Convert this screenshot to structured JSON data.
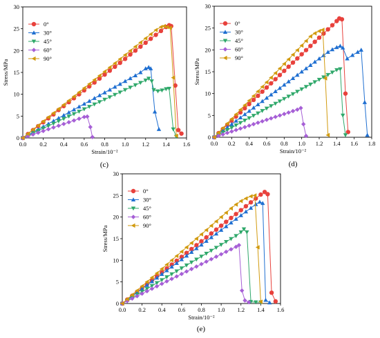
{
  "colors": {
    "0°": "#e8413c",
    "30°": "#1f6fd1",
    "45°": "#2fa86a",
    "60°": "#a65fd6",
    "90°": "#d19a0e"
  },
  "chart_data": [
    {
      "panel": "(c)",
      "type": "line",
      "xlabel": "Strain/10⁻²",
      "ylabel": "Stress/MPa",
      "xlim": [
        0,
        1.6
      ],
      "ylim": [
        0,
        30
      ],
      "xticks": [
        0.0,
        0.2,
        0.4,
        0.6,
        0.8,
        1.0,
        1.2,
        1.4,
        1.6
      ],
      "yticks": [
        0,
        5,
        10,
        15,
        20,
        25,
        30
      ],
      "legend_position": "top-left",
      "series": [
        {
          "name": "0°",
          "marker": "circle",
          "x": [
            0,
            0.05,
            0.1,
            0.15,
            0.2,
            0.25,
            0.3,
            0.35,
            0.4,
            0.45,
            0.5,
            0.55,
            0.6,
            0.65,
            0.7,
            0.75,
            0.8,
            0.85,
            0.9,
            0.95,
            1.0,
            1.05,
            1.1,
            1.15,
            1.2,
            1.25,
            1.3,
            1.35,
            1.4,
            1.43,
            1.45,
            1.49,
            1.52,
            1.55
          ],
          "y": [
            0,
            0.9,
            1.8,
            2.7,
            3.6,
            4.5,
            5.4,
            6.4,
            7.3,
            8.2,
            9.1,
            10.0,
            10.9,
            11.8,
            12.7,
            13.6,
            14.5,
            15.4,
            16.3,
            17.2,
            18.1,
            19.1,
            20.0,
            20.9,
            21.8,
            22.7,
            23.6,
            24.5,
            25.4,
            25.8,
            25.6,
            12.0,
            1.8,
            1.0
          ]
        },
        {
          "name": "30°",
          "marker": "triangle-up",
          "x": [
            0,
            0.05,
            0.1,
            0.15,
            0.2,
            0.25,
            0.3,
            0.35,
            0.4,
            0.45,
            0.5,
            0.55,
            0.6,
            0.65,
            0.7,
            0.75,
            0.8,
            0.85,
            0.9,
            0.95,
            1.0,
            1.05,
            1.1,
            1.15,
            1.2,
            1.23,
            1.25,
            1.29,
            1.33
          ],
          "y": [
            0,
            0.65,
            1.3,
            1.95,
            2.6,
            3.25,
            3.9,
            4.55,
            5.2,
            5.85,
            6.5,
            7.15,
            7.8,
            8.45,
            9.1,
            9.75,
            10.4,
            11.05,
            11.7,
            12.35,
            13.0,
            13.65,
            14.3,
            15.0,
            15.9,
            16.2,
            15.9,
            6.0,
            2.0
          ]
        },
        {
          "name": "45°",
          "marker": "triangle-down",
          "x": [
            0,
            0.05,
            0.1,
            0.15,
            0.2,
            0.25,
            0.3,
            0.35,
            0.4,
            0.45,
            0.5,
            0.55,
            0.6,
            0.65,
            0.7,
            0.75,
            0.8,
            0.85,
            0.9,
            0.95,
            1.0,
            1.05,
            1.1,
            1.15,
            1.2,
            1.23,
            1.26,
            1.28,
            1.32,
            1.36,
            1.4,
            1.43,
            1.47,
            1.5
          ],
          "y": [
            0,
            0.55,
            1.1,
            1.65,
            2.2,
            2.75,
            3.3,
            3.85,
            4.4,
            4.95,
            5.5,
            6.05,
            6.6,
            7.15,
            7.7,
            8.25,
            8.8,
            9.35,
            9.9,
            10.45,
            11.0,
            11.55,
            12.1,
            12.65,
            13.2,
            13.6,
            13.0,
            11.0,
            10.7,
            10.9,
            11.2,
            11.3,
            2.0,
            0.3
          ]
        },
        {
          "name": "60°",
          "marker": "diamond",
          "x": [
            0,
            0.05,
            0.1,
            0.15,
            0.2,
            0.25,
            0.3,
            0.35,
            0.4,
            0.45,
            0.5,
            0.55,
            0.6,
            0.63,
            0.66,
            0.68
          ],
          "y": [
            0,
            0.4,
            0.8,
            1.2,
            1.6,
            2.0,
            2.4,
            2.8,
            3.2,
            3.6,
            4.0,
            4.4,
            4.8,
            4.9,
            2.5,
            0.2
          ]
        },
        {
          "name": "90°",
          "marker": "triangle-left",
          "x": [
            0,
            0.05,
            0.1,
            0.15,
            0.2,
            0.25,
            0.3,
            0.35,
            0.4,
            0.45,
            0.5,
            0.55,
            0.6,
            0.65,
            0.7,
            0.75,
            0.8,
            0.85,
            0.9,
            0.95,
            1.0,
            1.05,
            1.1,
            1.15,
            1.2,
            1.25,
            1.3,
            1.35,
            1.38,
            1.41,
            1.44,
            1.47,
            1.5
          ],
          "y": [
            0,
            0.95,
            1.9,
            2.85,
            3.8,
            4.75,
            5.7,
            6.65,
            7.6,
            8.55,
            9.5,
            10.45,
            11.4,
            12.35,
            13.3,
            14.25,
            15.2,
            16.15,
            17.1,
            18.05,
            19.0,
            19.95,
            20.9,
            21.85,
            22.8,
            23.75,
            24.7,
            25.4,
            25.6,
            25.4,
            25.2,
            13.8,
            0.5
          ]
        }
      ]
    },
    {
      "panel": "(d)",
      "type": "line",
      "xlabel": "Strain/10⁻²",
      "ylabel": "Stress/MPa",
      "xlim": [
        0,
        1.8
      ],
      "ylim": [
        0,
        30
      ],
      "xticks": [
        0.0,
        0.2,
        0.4,
        0.6,
        0.8,
        1.0,
        1.2,
        1.4,
        1.6,
        1.8
      ],
      "yticks": [
        0,
        5,
        10,
        15,
        20,
        25,
        30
      ],
      "legend_position": "top-left",
      "series": [
        {
          "name": "0°",
          "marker": "circle",
          "x": [
            0,
            0.05,
            0.1,
            0.15,
            0.2,
            0.25,
            0.3,
            0.35,
            0.4,
            0.45,
            0.5,
            0.55,
            0.6,
            0.65,
            0.7,
            0.75,
            0.8,
            0.85,
            0.9,
            0.95,
            1.0,
            1.05,
            1.1,
            1.15,
            1.2,
            1.25,
            1.3,
            1.35,
            1.4,
            1.43,
            1.46,
            1.5,
            1.53
          ],
          "y": [
            0,
            0.95,
            1.9,
            2.85,
            3.8,
            4.75,
            5.7,
            6.65,
            7.6,
            8.55,
            9.5,
            10.45,
            11.4,
            12.35,
            13.3,
            14.25,
            15.2,
            16.15,
            17.1,
            18.05,
            19.0,
            19.95,
            20.9,
            21.85,
            22.8,
            23.75,
            24.7,
            25.65,
            26.6,
            27.2,
            27.0,
            10.0,
            1.2
          ]
        },
        {
          "name": "30°",
          "marker": "triangle-up",
          "x": [
            0,
            0.05,
            0.1,
            0.15,
            0.2,
            0.25,
            0.3,
            0.35,
            0.4,
            0.45,
            0.5,
            0.55,
            0.6,
            0.65,
            0.7,
            0.75,
            0.8,
            0.85,
            0.9,
            0.95,
            1.0,
            1.05,
            1.1,
            1.15,
            1.2,
            1.25,
            1.3,
            1.35,
            1.4,
            1.44,
            1.47,
            1.52,
            1.58,
            1.64,
            1.68,
            1.72,
            1.75
          ],
          "y": [
            0,
            0.75,
            1.5,
            2.25,
            3.0,
            3.75,
            4.5,
            5.25,
            6.0,
            6.75,
            7.5,
            8.25,
            9.0,
            9.75,
            10.5,
            11.25,
            12.0,
            12.75,
            13.5,
            14.25,
            15.0,
            15.75,
            16.5,
            17.25,
            18.0,
            18.75,
            19.5,
            20.1,
            20.6,
            20.9,
            20.5,
            18.0,
            18.8,
            19.5,
            20.0,
            8.0,
            0.5
          ]
        },
        {
          "name": "45°",
          "marker": "triangle-down",
          "x": [
            0,
            0.05,
            0.1,
            0.15,
            0.2,
            0.25,
            0.3,
            0.35,
            0.4,
            0.45,
            0.5,
            0.55,
            0.6,
            0.65,
            0.7,
            0.75,
            0.8,
            0.85,
            0.9,
            0.95,
            1.0,
            1.05,
            1.1,
            1.15,
            1.2,
            1.25,
            1.3,
            1.35,
            1.4,
            1.44,
            1.47,
            1.5
          ],
          "y": [
            0,
            0.55,
            1.1,
            1.65,
            2.2,
            2.75,
            3.3,
            3.85,
            4.4,
            4.95,
            5.5,
            6.05,
            6.6,
            7.15,
            7.7,
            8.25,
            8.8,
            9.35,
            9.9,
            10.45,
            11.0,
            11.55,
            12.1,
            12.65,
            13.2,
            13.75,
            14.3,
            14.85,
            15.4,
            15.6,
            5.0,
            0.5
          ]
        },
        {
          "name": "60°",
          "marker": "diamond",
          "x": [
            0,
            0.05,
            0.1,
            0.15,
            0.2,
            0.25,
            0.3,
            0.35,
            0.4,
            0.45,
            0.5,
            0.55,
            0.6,
            0.65,
            0.7,
            0.75,
            0.8,
            0.85,
            0.9,
            0.95,
            0.99,
            1.02,
            1.05
          ],
          "y": [
            0,
            0.33,
            0.66,
            1.0,
            1.33,
            1.66,
            2.0,
            2.33,
            2.66,
            3.0,
            3.33,
            3.66,
            4.0,
            4.33,
            4.66,
            5.0,
            5.33,
            5.66,
            6.0,
            6.33,
            6.7,
            3.0,
            0.3
          ]
        },
        {
          "name": "90°",
          "marker": "triangle-left",
          "x": [
            0,
            0.05,
            0.1,
            0.15,
            0.2,
            0.25,
            0.3,
            0.35,
            0.4,
            0.45,
            0.5,
            0.55,
            0.6,
            0.65,
            0.7,
            0.75,
            0.8,
            0.85,
            0.9,
            0.95,
            1.0,
            1.05,
            1.1,
            1.15,
            1.2,
            1.24,
            1.27,
            1.3
          ],
          "y": [
            0,
            1.05,
            2.1,
            3.15,
            4.2,
            5.25,
            6.3,
            7.35,
            8.4,
            9.45,
            10.5,
            11.55,
            12.6,
            13.65,
            14.7,
            15.75,
            16.8,
            17.85,
            18.9,
            19.95,
            21.0,
            22.05,
            23.1,
            23.8,
            24.3,
            24.6,
            13.5,
            0.5
          ]
        }
      ]
    },
    {
      "panel": "(e)",
      "type": "line",
      "xlabel": "Strain/10⁻²",
      "ylabel": "Stress/MPa",
      "xlim": [
        0,
        1.6
      ],
      "ylim": [
        0,
        30
      ],
      "xticks": [
        0.0,
        0.2,
        0.4,
        0.6,
        0.8,
        1.0,
        1.2,
        1.4,
        1.6
      ],
      "yticks": [
        0,
        5,
        10,
        15,
        20,
        25,
        30
      ],
      "legend_position": "top-left",
      "series": [
        {
          "name": "0°",
          "marker": "circle",
          "x": [
            0,
            0.05,
            0.1,
            0.15,
            0.2,
            0.25,
            0.3,
            0.35,
            0.4,
            0.45,
            0.5,
            0.55,
            0.6,
            0.65,
            0.7,
            0.75,
            0.8,
            0.85,
            0.9,
            0.95,
            1.0,
            1.05,
            1.1,
            1.15,
            1.2,
            1.25,
            1.3,
            1.35,
            1.4,
            1.44,
            1.47,
            1.51,
            1.55
          ],
          "y": [
            0,
            0.9,
            1.8,
            2.7,
            3.6,
            4.5,
            5.4,
            6.3,
            7.2,
            8.1,
            9.0,
            9.9,
            10.8,
            11.7,
            12.6,
            13.5,
            14.4,
            15.3,
            16.2,
            17.1,
            18.0,
            18.9,
            19.8,
            20.7,
            21.6,
            22.5,
            23.4,
            24.3,
            25.2,
            25.8,
            25.3,
            2.5,
            0.5
          ]
        },
        {
          "name": "30°",
          "marker": "triangle-up",
          "x": [
            0,
            0.05,
            0.1,
            0.15,
            0.2,
            0.25,
            0.3,
            0.35,
            0.4,
            0.45,
            0.5,
            0.55,
            0.6,
            0.65,
            0.7,
            0.75,
            0.8,
            0.85,
            0.9,
            0.95,
            1.0,
            1.05,
            1.1,
            1.15,
            1.2,
            1.25,
            1.3,
            1.35,
            1.39,
            1.42,
            1.45,
            1.49
          ],
          "y": [
            0,
            0.85,
            1.7,
            2.55,
            3.4,
            4.25,
            5.1,
            5.95,
            6.8,
            7.65,
            8.5,
            9.35,
            10.2,
            11.05,
            11.9,
            12.75,
            13.6,
            14.45,
            15.3,
            16.15,
            17.0,
            17.85,
            18.7,
            19.55,
            20.4,
            21.25,
            22.1,
            22.95,
            23.5,
            23.2,
            0.8,
            0.2
          ]
        },
        {
          "name": "45°",
          "marker": "triangle-down",
          "x": [
            0,
            0.05,
            0.1,
            0.15,
            0.2,
            0.25,
            0.3,
            0.35,
            0.4,
            0.45,
            0.5,
            0.55,
            0.6,
            0.65,
            0.7,
            0.75,
            0.8,
            0.85,
            0.9,
            0.95,
            1.0,
            1.05,
            1.1,
            1.15,
            1.2,
            1.23,
            1.26,
            1.3,
            1.35,
            1.4
          ],
          "y": [
            0,
            0.68,
            1.36,
            2.04,
            2.72,
            3.4,
            4.08,
            4.76,
            5.44,
            6.12,
            6.8,
            7.48,
            8.16,
            8.84,
            9.52,
            10.2,
            10.88,
            11.56,
            12.24,
            12.92,
            13.6,
            14.28,
            14.96,
            15.64,
            16.5,
            17.2,
            16.5,
            0.4,
            0.3,
            0.3
          ]
        },
        {
          "name": "60°",
          "marker": "diamond",
          "x": [
            0,
            0.05,
            0.1,
            0.15,
            0.2,
            0.25,
            0.3,
            0.35,
            0.4,
            0.45,
            0.5,
            0.55,
            0.6,
            0.65,
            0.7,
            0.75,
            0.8,
            0.85,
            0.9,
            0.95,
            1.0,
            1.05,
            1.1,
            1.15,
            1.18,
            1.21,
            1.24,
            1.28
          ],
          "y": [
            0,
            0.57,
            1.14,
            1.71,
            2.28,
            2.85,
            3.42,
            3.99,
            4.56,
            5.13,
            5.7,
            6.27,
            6.84,
            7.41,
            7.98,
            8.55,
            9.12,
            9.69,
            10.26,
            10.83,
            11.4,
            11.97,
            12.54,
            13.11,
            13.5,
            3.0,
            0.7,
            0.3
          ]
        },
        {
          "name": "90°",
          "marker": "triangle-left",
          "x": [
            0,
            0.05,
            0.1,
            0.15,
            0.2,
            0.25,
            0.3,
            0.35,
            0.4,
            0.45,
            0.5,
            0.55,
            0.6,
            0.65,
            0.7,
            0.75,
            0.8,
            0.85,
            0.9,
            0.95,
            1.0,
            1.05,
            1.1,
            1.15,
            1.2,
            1.25,
            1.3,
            1.34,
            1.37,
            1.4
          ],
          "y": [
            0,
            1.0,
            2.0,
            3.0,
            4.0,
            5.0,
            6.0,
            7.0,
            8.0,
            9.0,
            10.0,
            11.0,
            12.0,
            13.0,
            14.0,
            15.0,
            16.0,
            17.0,
            18.0,
            19.0,
            20.0,
            21.0,
            22.0,
            22.9,
            23.7,
            24.3,
            24.8,
            25.0,
            13.0,
            0.4
          ]
        }
      ]
    }
  ]
}
